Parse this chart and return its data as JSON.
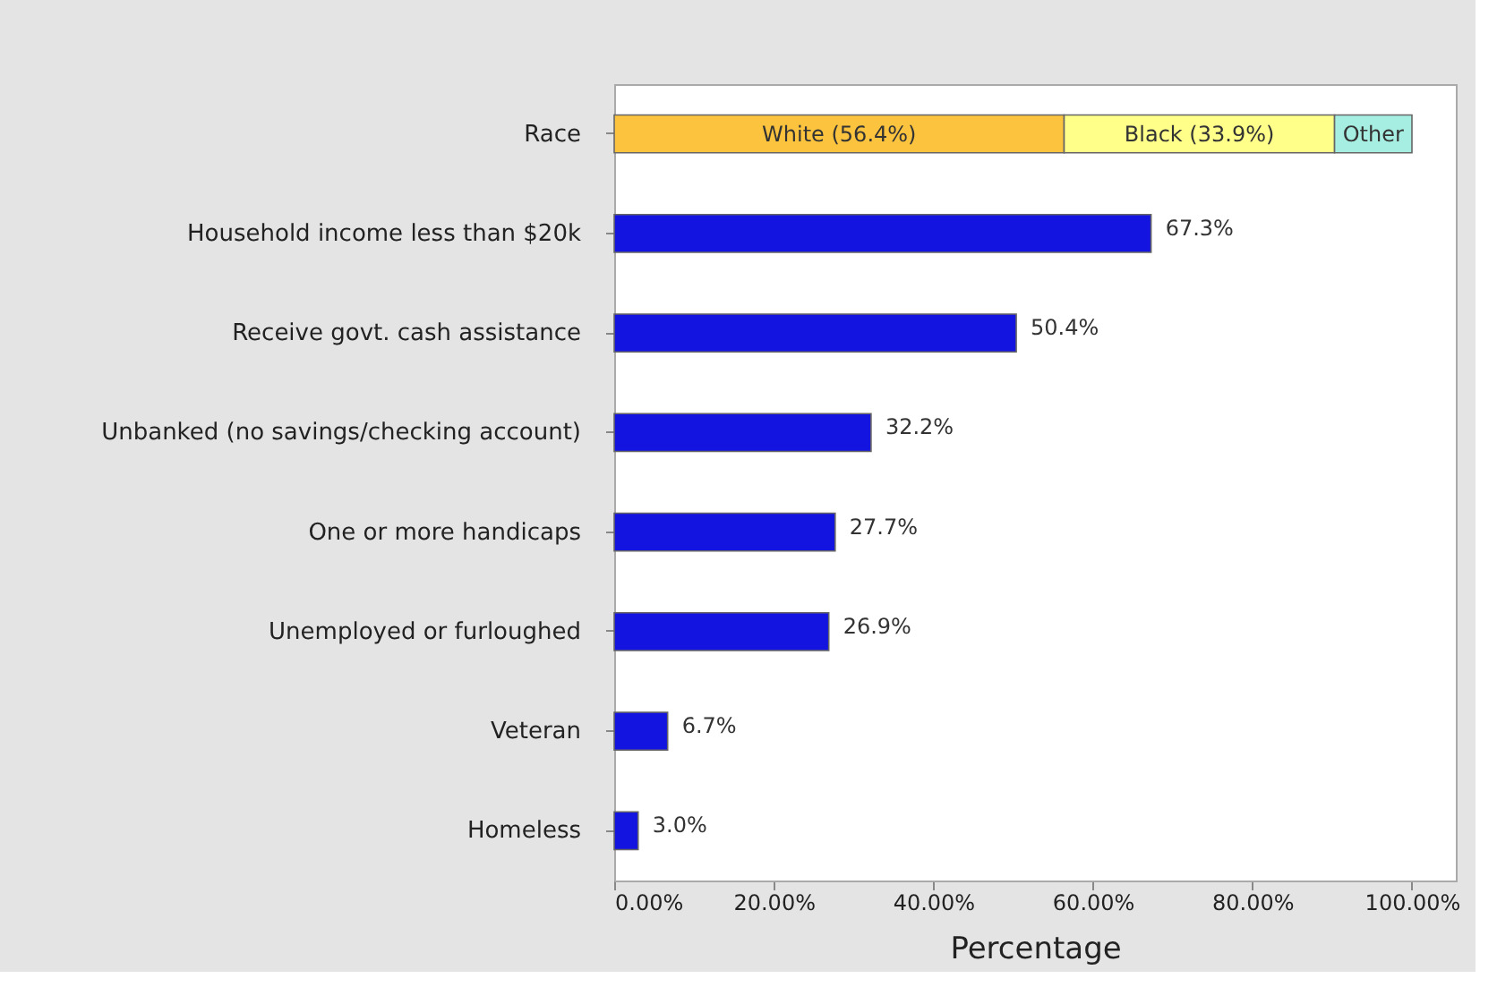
{
  "chart_data": {
    "type": "bar",
    "orientation": "horizontal",
    "stacked": true,
    "categories": [
      "Race",
      "Household income less than $20k",
      "Receive govt. cash assistance",
      "Unbanked (no savings/checking account)",
      "One or more handicaps",
      "Unemployed or furloughed",
      "Veteran",
      "Homeless"
    ],
    "series": [
      {
        "color": "#fcc43e",
        "values": [
          56.4,
          null,
          null,
          null,
          null,
          null,
          null,
          null
        ],
        "value_labels": [
          "White (56.4%)",
          null,
          null,
          null,
          null,
          null,
          null,
          null
        ]
      },
      {
        "color": "#ffff8a",
        "values": [
          33.9,
          null,
          null,
          null,
          null,
          null,
          null,
          null
        ],
        "value_labels": [
          "Black (33.9%)",
          null,
          null,
          null,
          null,
          null,
          null,
          null
        ]
      },
      {
        "color": "#a6eee2",
        "values": [
          9.7,
          null,
          null,
          null,
          null,
          null,
          null,
          null
        ],
        "value_labels": [
          "Other",
          null,
          null,
          null,
          null,
          null,
          null,
          null
        ]
      },
      {
        "color": "#1414e0",
        "values": [
          null,
          67.3,
          50.4,
          32.2,
          27.7,
          26.9,
          6.7,
          3.0
        ],
        "value_labels": [
          null,
          "67.3%",
          "50.4%",
          "32.2%",
          "27.7%",
          "26.9%",
          "6.7%",
          "3.0%"
        ]
      }
    ],
    "xlabel": "Percentage",
    "xlim": [
      0,
      105.5
    ],
    "xticks": [
      {
        "value": 0,
        "label": "0.00%"
      },
      {
        "value": 20,
        "label": "20.00%"
      },
      {
        "value": 40,
        "label": "40.00%"
      },
      {
        "value": 60,
        "label": "60.00%"
      },
      {
        "value": 80,
        "label": "80.00%"
      },
      {
        "value": 100,
        "label": "100.00%"
      }
    ],
    "grid": false
  }
}
